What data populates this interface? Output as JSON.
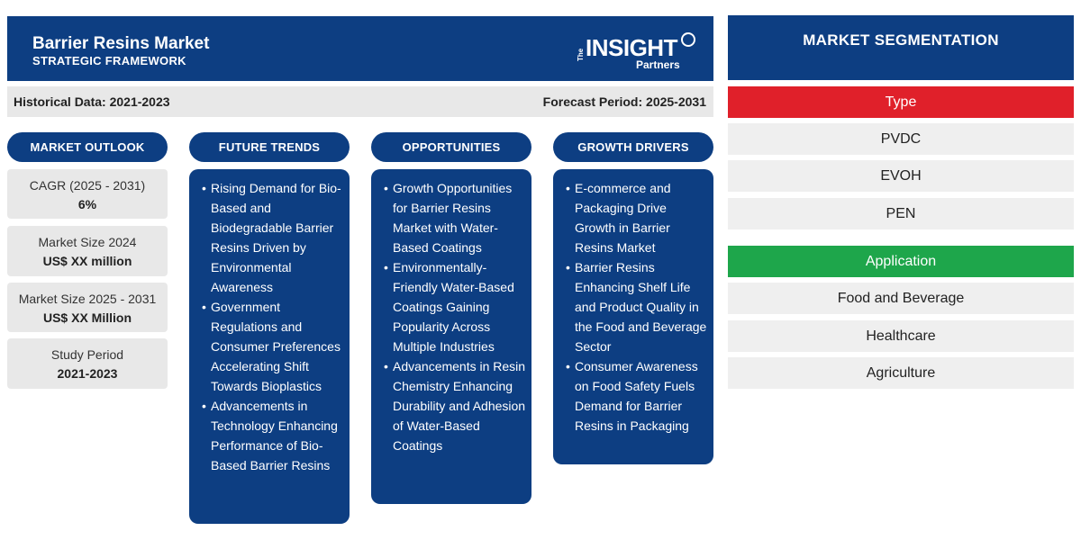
{
  "header": {
    "title": "Barrier Resins Market",
    "subtitle": "STRATEGIC FRAMEWORK",
    "logo": {
      "the": "The",
      "insight": "INSIGHT",
      "partners": "Partners"
    }
  },
  "period": {
    "historical": "Historical Data: 2021-2023",
    "forecast": "Forecast Period: 2025-2031"
  },
  "columns": {
    "outlook": "MARKET OUTLOOK",
    "trends": "FUTURE TRENDS",
    "opportunities": "OPPORTUNITIES",
    "drivers": "GROWTH DRIVERS"
  },
  "outlook": [
    {
      "label": "CAGR (2025 - 2031)",
      "value": "6%"
    },
    {
      "label": "Market Size 2024",
      "value": "US$ XX million"
    },
    {
      "label": "Market Size 2025 - 2031",
      "value": "US$ XX Million"
    },
    {
      "label": "Study Period",
      "value": "2021-2023"
    }
  ],
  "trends": [
    "Rising Demand for Bio-Based and Biodegradable Barrier Resins Driven by Environmental Awareness",
    "Government Regulations and Consumer Preferences Accelerating Shift Towards Bioplastics",
    "Advancements in Technology Enhancing Performance of Bio-Based Barrier Resins"
  ],
  "opportunities": [
    "Growth Opportunities for Barrier Resins Market with Water-Based Coatings",
    "Environmentally-Friendly Water-Based Coatings Gaining Popularity Across Multiple Industries",
    "Advancements in Resin Chemistry Enhancing Durability and Adhesion of Water-Based Coatings"
  ],
  "drivers": [
    "E-commerce and Packaging Drive Growth in Barrier Resins Market",
    "Barrier Resins Enhancing Shelf Life and Product Quality in the Food and Beverage Sector",
    "Consumer Awareness on Food Safety Fuels Demand for Barrier Resins in Packaging"
  ],
  "segmentation": {
    "title": "MARKET SEGMENTATION",
    "type": {
      "label": "Type",
      "color": "#e0202a",
      "items": [
        "PVDC",
        "EVOH",
        "PEN"
      ]
    },
    "application": {
      "label": "Application",
      "color": "#1ea64b",
      "items": [
        "Food and Beverage",
        "Healthcare",
        "Agriculture"
      ]
    }
  },
  "colors": {
    "navy": "#0d3e82",
    "grey": "#e8e8e8"
  }
}
